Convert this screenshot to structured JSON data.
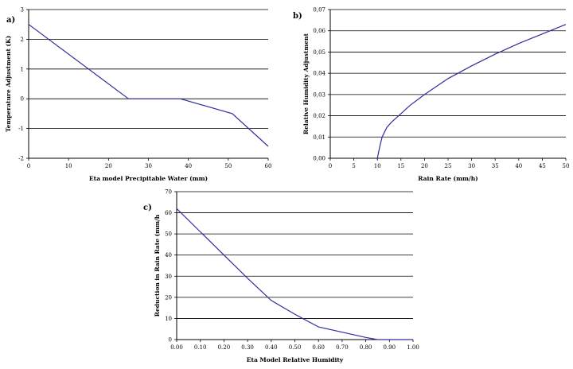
{
  "chart_data": [
    {
      "panel": "a)",
      "type": "line",
      "xlabel": "Eta model Precipitable Water (mm)",
      "ylabel": "Temperature Adjustment (K)",
      "xlim": [
        0,
        60
      ],
      "ylim": [
        -2,
        3
      ],
      "xticks": [
        0,
        10,
        20,
        30,
        40,
        50,
        60
      ],
      "yticks": [
        -2,
        -1,
        0,
        1,
        2,
        3
      ],
      "xtick_labels": [
        "0",
        "10",
        "20",
        "30",
        "40",
        "50",
        "60"
      ],
      "ytick_labels": [
        "-2",
        "-1",
        "0",
        "1",
        "2",
        "3"
      ],
      "grid": "horizontal",
      "series": [
        {
          "color": "#2e2e9e",
          "x": [
            0,
            25,
            38,
            51,
            60
          ],
          "y": [
            2.5,
            0,
            0,
            -0.5,
            -1.6
          ]
        }
      ]
    },
    {
      "panel": "b)",
      "type": "line",
      "xlabel": "Rain Rate (mm/h)",
      "ylabel": "Relative Humidity Adjustment",
      "xlim": [
        0,
        50
      ],
      "ylim": [
        0,
        0.07
      ],
      "xticks": [
        0,
        5,
        10,
        15,
        20,
        25,
        30,
        35,
        40,
        45,
        50
      ],
      "yticks": [
        0,
        0.01,
        0.02,
        0.03,
        0.04,
        0.05,
        0.06,
        0.07
      ],
      "xtick_labels": [
        "0",
        "5",
        "10",
        "15",
        "20",
        "25",
        "30",
        "35",
        "40",
        "45",
        "50"
      ],
      "ytick_labels": [
        "0,00",
        "0,01",
        "0,02",
        "0,03",
        "0,04",
        "0,05",
        "0,06",
        "0,07"
      ],
      "grid": "horizontal",
      "series": [
        {
          "color": "#2e2e9e",
          "x": [
            10,
            10.5,
            11,
            12,
            13,
            15,
            17,
            20,
            25,
            30,
            35,
            40,
            45,
            50
          ],
          "y": [
            0,
            0.0055,
            0.01,
            0.0145,
            0.017,
            0.021,
            0.025,
            0.03,
            0.0375,
            0.0435,
            0.049,
            0.054,
            0.0585,
            0.063
          ]
        }
      ]
    },
    {
      "panel": "c)",
      "type": "line",
      "xlabel": "Eta Model Relative Humidity",
      "ylabel": "Reduction in Rain Rate (mm/h",
      "xlim": [
        0,
        1
      ],
      "ylim": [
        0,
        70
      ],
      "xticks": [
        0,
        0.1,
        0.2,
        0.3,
        0.4,
        0.5,
        0.6,
        0.7,
        0.8,
        0.9,
        1.0
      ],
      "yticks": [
        0,
        10,
        20,
        30,
        40,
        50,
        60,
        70
      ],
      "xtick_labels": [
        "0.00",
        "0.10",
        "0.20",
        "0.30",
        "0.40",
        "0.50",
        "0.60",
        "0.70",
        "0.80",
        "0.90",
        "1.00"
      ],
      "ytick_labels": [
        "0",
        "10",
        "20",
        "30",
        "40",
        "50",
        "60",
        "70"
      ],
      "grid": "horizontal",
      "series": [
        {
          "color": "#2e2e9e",
          "x": [
            0,
            0.1,
            0.2,
            0.3,
            0.4,
            0.5,
            0.6,
            0.7,
            0.8,
            0.85,
            0.9,
            1.0
          ],
          "y": [
            62,
            51,
            40,
            29,
            18.5,
            12,
            6,
            3.5,
            1,
            0,
            0,
            0
          ]
        }
      ]
    }
  ]
}
